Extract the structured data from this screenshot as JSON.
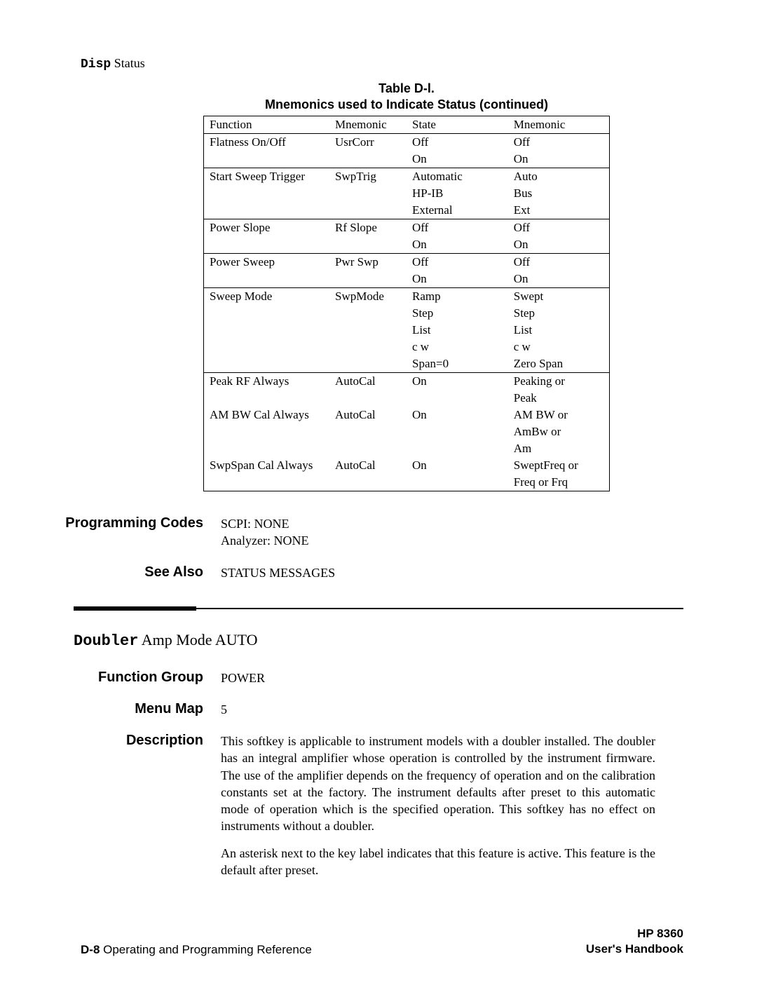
{
  "header": {
    "bold": "Disp",
    "rest": " Status"
  },
  "table": {
    "title_l1": "Table D-l.",
    "title_l2": "Mnemonics used to Indicate Status (continued)",
    "headers": [
      "Function",
      "Mnemonic",
      "State",
      "Mnemonic"
    ],
    "groups": [
      {
        "function": "Flatness On/Off",
        "mnemonic": "UsrCorr",
        "rows": [
          [
            "Off",
            "Off"
          ],
          [
            "On",
            "On"
          ]
        ]
      },
      {
        "function": "Start Sweep Trigger",
        "mnemonic": "SwpTrig",
        "rows": [
          [
            "Automatic",
            "Auto"
          ],
          [
            "HP-IB",
            "Bus"
          ],
          [
            "External",
            "Ext"
          ]
        ]
      },
      {
        "function": "Power Slope",
        "mnemonic": "Rf Slope",
        "rows": [
          [
            "Off",
            "Off"
          ],
          [
            "On",
            "On"
          ]
        ]
      },
      {
        "function": "Power Sweep",
        "mnemonic": "Pwr Swp",
        "rows": [
          [
            "Off",
            "Off"
          ],
          [
            "On",
            "On"
          ]
        ]
      },
      {
        "function": "Sweep Mode",
        "mnemonic": "SwpMode",
        "rows": [
          [
            "Ramp",
            "Swept"
          ],
          [
            "Step",
            "Step"
          ],
          [
            "List",
            "List"
          ],
          [
            "c w",
            "c w"
          ],
          [
            "Span=0",
            "Zero Span"
          ]
        ]
      },
      {
        "function": "Peak RF Always",
        "mnemonic": "AutoCal",
        "rows": [
          [
            "On",
            "Peaking or"
          ],
          [
            "",
            "Peak"
          ]
        ],
        "nosep_after": true
      },
      {
        "function": "AM BW Cal Always",
        "mnemonic": "AutoCal",
        "rows": [
          [
            "On",
            "AM BW or"
          ],
          [
            "",
            "AmBw or"
          ],
          [
            "",
            "Am"
          ]
        ],
        "nosep": true,
        "nosep_after": true
      },
      {
        "function": "SwpSpan Cal Always",
        "mnemonic": "AutoCal",
        "rows": [
          [
            "On",
            "SweptFreq or"
          ],
          [
            "",
            "Freq or Frq"
          ]
        ],
        "nosep": true
      }
    ]
  },
  "prog_codes": {
    "label": "Programming Codes",
    "l1": "SCPI: NONE",
    "l2": "Analyzer: NONE"
  },
  "see_also": {
    "label": "See Also",
    "text": "STATUS MESSAGES"
  },
  "doubler": {
    "bold": "Doubler",
    "rest": " Amp Mode AUTO"
  },
  "fgroup": {
    "label": "Function Group",
    "text": "POWER"
  },
  "mmap": {
    "label": "Menu Map",
    "text": "5"
  },
  "desc": {
    "label": "Description",
    "p1": "This softkey is applicable to instrument models with a doubler installed. The doubler has an integral amplifier whose operation is controlled by the instrument firmware. The use of the amplifier depends on the frequency of operation and on the calibration constants set at the factory. The instrument defaults after preset to this automatic mode of operation which is the specified operation. This softkey has no effect on instruments without a doubler.",
    "p2": "An asterisk next to the key label indicates that this feature is active. This feature is the default after preset."
  },
  "footer": {
    "left_bold": "D-8",
    "left_rest": " Operating and Programming Reference",
    "right_l1": "HP 8360",
    "right_l2": "User's Handbook"
  }
}
